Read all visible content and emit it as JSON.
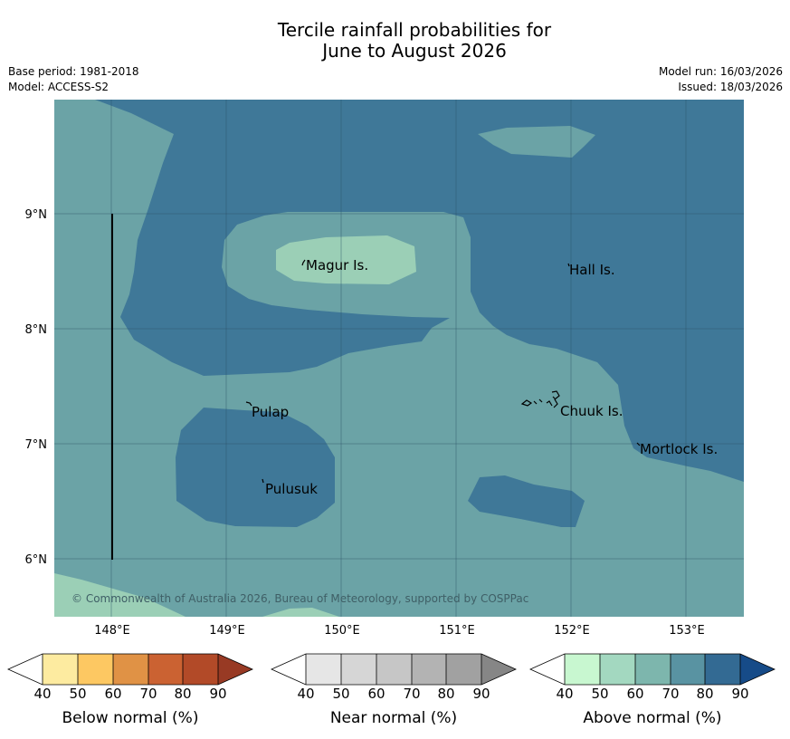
{
  "title_line1": "Tercile rainfall probabilities for",
  "title_line2": "June to August 2026",
  "meta_left": {
    "base_period": "Base period: 1981-2018",
    "model": "Model: ACCESS-S2"
  },
  "meta_right": {
    "model_run": "Model run: 16/03/2026",
    "issued": "Issued: 18/03/2026"
  },
  "map": {
    "lat_labels": [
      "9°N",
      "8°N",
      "7°N",
      "6°N"
    ],
    "lon_labels": [
      "148°E",
      "149°E",
      "150°E",
      "151°E",
      "152°E",
      "153°E"
    ],
    "places": [
      "Magur Is.",
      "Hall Is.",
      "Pulap",
      "Chuuk Is.",
      "Mortlock Is.",
      "Pulusuk"
    ],
    "copyright": "© Commonwealth of Australia 2026, Bureau of Meteorology, supported by COSPPac",
    "region_colors": {
      "above_60_70": "#6ba3a6",
      "above_70_80": "#3f7898",
      "above_50_60": "#9bcfb6"
    }
  },
  "colorbars": [
    {
      "title": "Below normal (%)",
      "ticks": [
        "40",
        "50",
        "60",
        "70",
        "80",
        "90"
      ],
      "colors": [
        "#ffffff",
        "#fdeba0",
        "#fdc862",
        "#e09245",
        "#cb6232",
        "#b24a28",
        "#983a24"
      ]
    },
    {
      "title": "Near normal (%)",
      "ticks": [
        "40",
        "50",
        "60",
        "70",
        "80",
        "90"
      ],
      "colors": [
        "#ffffff",
        "#e6e6e6",
        "#d6d6d6",
        "#c6c6c6",
        "#b3b3b3",
        "#a1a1a1",
        "#868686"
      ]
    },
    {
      "title": "Above normal (%)",
      "ticks": [
        "40",
        "50",
        "60",
        "70",
        "80",
        "90"
      ],
      "colors": [
        "#ffffff",
        "#c8f7d0",
        "#a3d8c0",
        "#7db6ad",
        "#5993a2",
        "#336a93",
        "#164b88"
      ]
    }
  ]
}
